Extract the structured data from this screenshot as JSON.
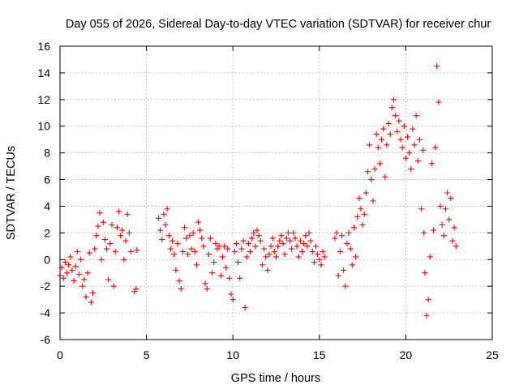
{
  "colors": {
    "series": "#ff0000",
    "grid": "#a0a0a0",
    "axis": "#000000",
    "background": "#ffffff"
  },
  "chart_data": {
    "type": "scatter",
    "title": "Day 055 of 2026, Sidereal Day-to-day VTEC variation (SDTVAR) for receiver chur",
    "xlabel": "GPS time / hours",
    "ylabel": "SDTVAR / TECUs",
    "xlim": [
      0,
      25
    ],
    "ylim": [
      -6,
      16
    ],
    "xticks": [
      0,
      5,
      10,
      15,
      20,
      25
    ],
    "yticks": [
      -6,
      -4,
      -2,
      0,
      2,
      4,
      6,
      8,
      10,
      12,
      14,
      16
    ],
    "grid": true,
    "marker": "+",
    "series": [
      {
        "name": "SDTVAR",
        "points": [
          [
            0.0,
            -1.2
          ],
          [
            0.1,
            -0.6
          ],
          [
            0.2,
            -1.4
          ],
          [
            0.3,
            -0.2
          ],
          [
            0.4,
            -1.0
          ],
          [
            0.5,
            -0.4
          ],
          [
            0.6,
            0.2
          ],
          [
            0.7,
            -0.8
          ],
          [
            0.8,
            -1.6
          ],
          [
            0.9,
            -0.5
          ],
          [
            1.0,
            0.6
          ],
          [
            1.1,
            -1.1
          ],
          [
            1.2,
            0.0
          ],
          [
            1.3,
            -2.0
          ],
          [
            1.4,
            -1.5
          ],
          [
            1.5,
            -2.8
          ],
          [
            1.6,
            -1.0
          ],
          [
            1.7,
            0.5
          ],
          [
            1.8,
            -3.2
          ],
          [
            1.9,
            -2.5
          ],
          [
            2.0,
            0.8
          ],
          [
            2.1,
            1.8
          ],
          [
            2.2,
            2.5
          ],
          [
            2.3,
            3.5
          ],
          [
            2.4,
            0.0
          ],
          [
            2.5,
            2.8
          ],
          [
            2.6,
            1.5
          ],
          [
            2.7,
            0.8
          ],
          [
            2.8,
            -1.5
          ],
          [
            2.9,
            1.2
          ],
          [
            3.0,
            2.6
          ],
          [
            3.1,
            -2.0
          ],
          [
            3.2,
            0.6
          ],
          [
            3.3,
            2.4
          ],
          [
            3.4,
            3.6
          ],
          [
            3.5,
            1.8
          ],
          [
            3.6,
            2.2
          ],
          [
            3.7,
            0.0
          ],
          [
            3.8,
            1.4
          ],
          [
            3.9,
            3.4
          ],
          [
            4.0,
            2.0
          ],
          [
            4.1,
            0.6
          ],
          [
            4.3,
            -2.4
          ],
          [
            4.4,
            -2.2
          ],
          [
            4.45,
            0.7
          ],
          [
            5.7,
            3.1
          ],
          [
            5.8,
            2.2
          ],
          [
            5.9,
            1.5
          ],
          [
            6.0,
            3.4
          ],
          [
            6.1,
            2.6
          ],
          [
            6.2,
            3.8
          ],
          [
            6.3,
            1.8
          ],
          [
            6.4,
            0.8
          ],
          [
            6.5,
            1.4
          ],
          [
            6.6,
            0.4
          ],
          [
            6.7,
            -0.8
          ],
          [
            6.8,
            1.2
          ],
          [
            6.9,
            -1.6
          ],
          [
            7.0,
            -2.2
          ],
          [
            7.1,
            0.6
          ],
          [
            7.2,
            2.4
          ],
          [
            7.3,
            1.6
          ],
          [
            7.4,
            0.4
          ],
          [
            7.5,
            1.8
          ],
          [
            7.6,
            0.8
          ],
          [
            7.7,
            2.0
          ],
          [
            7.8,
            0.6
          ],
          [
            7.9,
            -0.4
          ],
          [
            8.0,
            2.8
          ],
          [
            8.1,
            2.2
          ],
          [
            8.2,
            1.6
          ],
          [
            8.3,
            1.0
          ],
          [
            8.4,
            -1.8
          ],
          [
            8.5,
            -2.2
          ],
          [
            8.6,
            0.4
          ],
          [
            8.7,
            1.6
          ],
          [
            8.8,
            -1.0
          ],
          [
            8.9,
            -0.2
          ],
          [
            9.0,
            1.2
          ],
          [
            9.1,
            0.8
          ],
          [
            9.2,
            1.0
          ],
          [
            9.3,
            -1.2
          ],
          [
            9.4,
            0.2
          ],
          [
            9.5,
            1.0
          ],
          [
            9.6,
            -0.6
          ],
          [
            9.7,
            0.8
          ],
          [
            9.8,
            -1.4
          ],
          [
            9.9,
            -2.6
          ],
          [
            10.0,
            -3.0
          ],
          [
            10.1,
            0.6
          ],
          [
            10.2,
            1.2
          ],
          [
            10.3,
            -0.2
          ],
          [
            10.4,
            -1.4
          ],
          [
            10.5,
            0.8
          ],
          [
            10.6,
            1.4
          ],
          [
            10.7,
            -3.6
          ],
          [
            10.8,
            0.2
          ],
          [
            10.9,
            1.2
          ],
          [
            11.0,
            0.6
          ],
          [
            11.1,
            1.6
          ],
          [
            11.2,
            2.0
          ],
          [
            11.3,
            1.0
          ],
          [
            11.4,
            2.2
          ],
          [
            11.5,
            1.8
          ],
          [
            11.6,
            1.4
          ],
          [
            11.7,
            -0.4
          ],
          [
            11.8,
            0.8
          ],
          [
            11.9,
            0.2
          ],
          [
            12.0,
            -0.8
          ],
          [
            12.1,
            0.4
          ],
          [
            12.2,
            1.0
          ],
          [
            12.3,
            1.6
          ],
          [
            12.4,
            0.6
          ],
          [
            12.5,
            0.2
          ],
          [
            12.6,
            1.0
          ],
          [
            12.7,
            1.4
          ],
          [
            12.8,
            1.8
          ],
          [
            12.9,
            1.2
          ],
          [
            13.0,
            0.4
          ],
          [
            13.1,
            1.6
          ],
          [
            13.2,
            2.0
          ],
          [
            13.3,
            1.4
          ],
          [
            13.4,
            0.8
          ],
          [
            13.5,
            2.0
          ],
          [
            13.6,
            1.6
          ],
          [
            13.7,
            1.0
          ],
          [
            13.8,
            0.2
          ],
          [
            13.9,
            1.4
          ],
          [
            14.0,
            0.6
          ],
          [
            14.1,
            1.2
          ],
          [
            14.2,
            1.8
          ],
          [
            14.3,
            1.0
          ],
          [
            14.4,
            2.0
          ],
          [
            14.5,
            1.4
          ],
          [
            14.6,
            0.6
          ],
          [
            14.7,
            -0.2
          ],
          [
            14.8,
            1.0
          ],
          [
            14.9,
            0.4
          ],
          [
            15.0,
            0.0
          ],
          [
            15.1,
            -0.4
          ],
          [
            15.2,
            0.6
          ],
          [
            15.3,
            0.2
          ],
          [
            15.9,
            1.6
          ],
          [
            16.0,
            2.0
          ],
          [
            16.1,
            -1.2
          ],
          [
            16.2,
            0.6
          ],
          [
            16.3,
            1.8
          ],
          [
            16.4,
            -0.8
          ],
          [
            16.5,
            -2.0
          ],
          [
            16.6,
            1.2
          ],
          [
            16.7,
            2.0
          ],
          [
            16.8,
            0.8
          ],
          [
            16.9,
            -0.4
          ],
          [
            17.0,
            2.4
          ],
          [
            17.1,
            0.2
          ],
          [
            17.2,
            3.2
          ],
          [
            17.3,
            4.6
          ],
          [
            17.4,
            3.8
          ],
          [
            17.5,
            2.6
          ],
          [
            17.6,
            3.4
          ],
          [
            17.7,
            5.0
          ],
          [
            17.8,
            6.6
          ],
          [
            17.9,
            8.6
          ],
          [
            18.0,
            6.0
          ],
          [
            18.1,
            4.4
          ],
          [
            18.2,
            6.8
          ],
          [
            18.3,
            9.4
          ],
          [
            18.4,
            8.4
          ],
          [
            18.5,
            7.2
          ],
          [
            18.6,
            9.0
          ],
          [
            18.7,
            9.8
          ],
          [
            18.8,
            6.2
          ],
          [
            18.9,
            8.6
          ],
          [
            19.0,
            10.2
          ],
          [
            19.1,
            9.4
          ],
          [
            19.2,
            11.4
          ],
          [
            19.3,
            12.0
          ],
          [
            19.4,
            10.8
          ],
          [
            19.5,
            9.6
          ],
          [
            19.6,
            10.4
          ],
          [
            19.7,
            9.0
          ],
          [
            19.8,
            8.4
          ],
          [
            19.9,
            10.0
          ],
          [
            20.0,
            7.6
          ],
          [
            20.1,
            9.2
          ],
          [
            20.2,
            8.0
          ],
          [
            20.3,
            6.8
          ],
          [
            20.4,
            9.8
          ],
          [
            20.5,
            8.6
          ],
          [
            20.6,
            10.8
          ],
          [
            20.7,
            7.4
          ],
          [
            20.8,
            9.0
          ],
          [
            20.9,
            3.8
          ],
          [
            21.0,
            8.2
          ],
          [
            21.05,
            2.0
          ],
          [
            21.1,
            -1.0
          ],
          [
            21.2,
            -4.2
          ],
          [
            21.3,
            -3.0
          ],
          [
            21.4,
            0.2
          ],
          [
            21.5,
            7.2
          ],
          [
            21.6,
            2.2
          ],
          [
            21.7,
            8.4
          ],
          [
            21.8,
            14.5
          ],
          [
            21.9,
            11.8
          ],
          [
            22.0,
            4.0
          ],
          [
            22.1,
            2.6
          ],
          [
            22.2,
            1.8
          ],
          [
            22.3,
            3.8
          ],
          [
            22.4,
            5.0
          ],
          [
            22.5,
            3.0
          ],
          [
            22.6,
            4.6
          ],
          [
            22.7,
            1.4
          ],
          [
            22.8,
            2.4
          ],
          [
            22.9,
            1.0
          ]
        ]
      }
    ]
  }
}
